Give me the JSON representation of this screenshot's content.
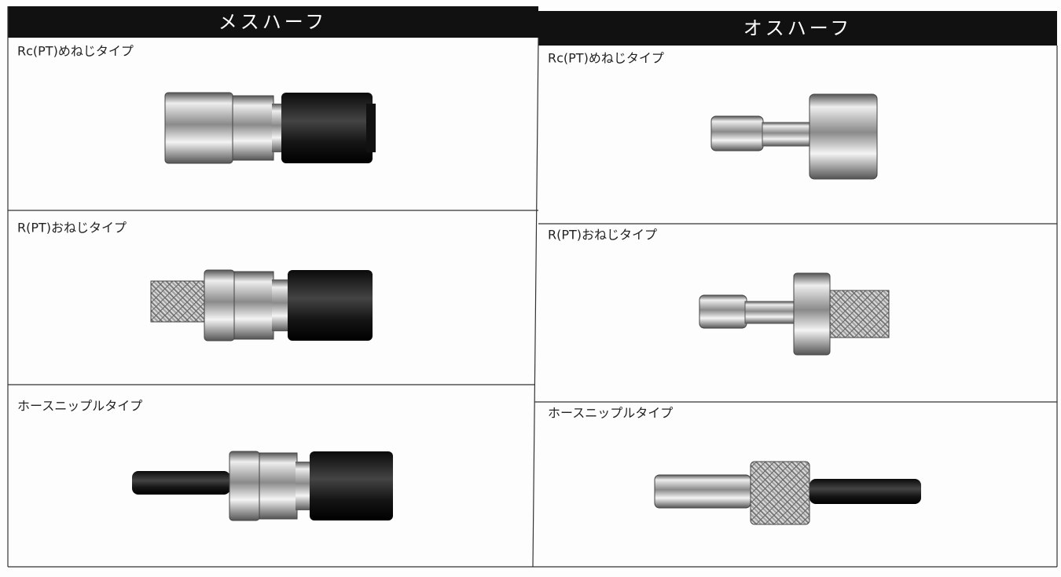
{
  "table": {
    "headers": [
      "メスハーフ",
      "オスハーフ"
    ],
    "rows": [
      [
        "Rc(PT)めねじタイプ",
        "Rc(PT)めねじタイプ"
      ],
      [
        "R(PT)おねじタイプ",
        "R(PT)おねじタイプ"
      ],
      [
        "ホースニップルタイプ",
        "ホースニップルタイプ"
      ]
    ]
  }
}
